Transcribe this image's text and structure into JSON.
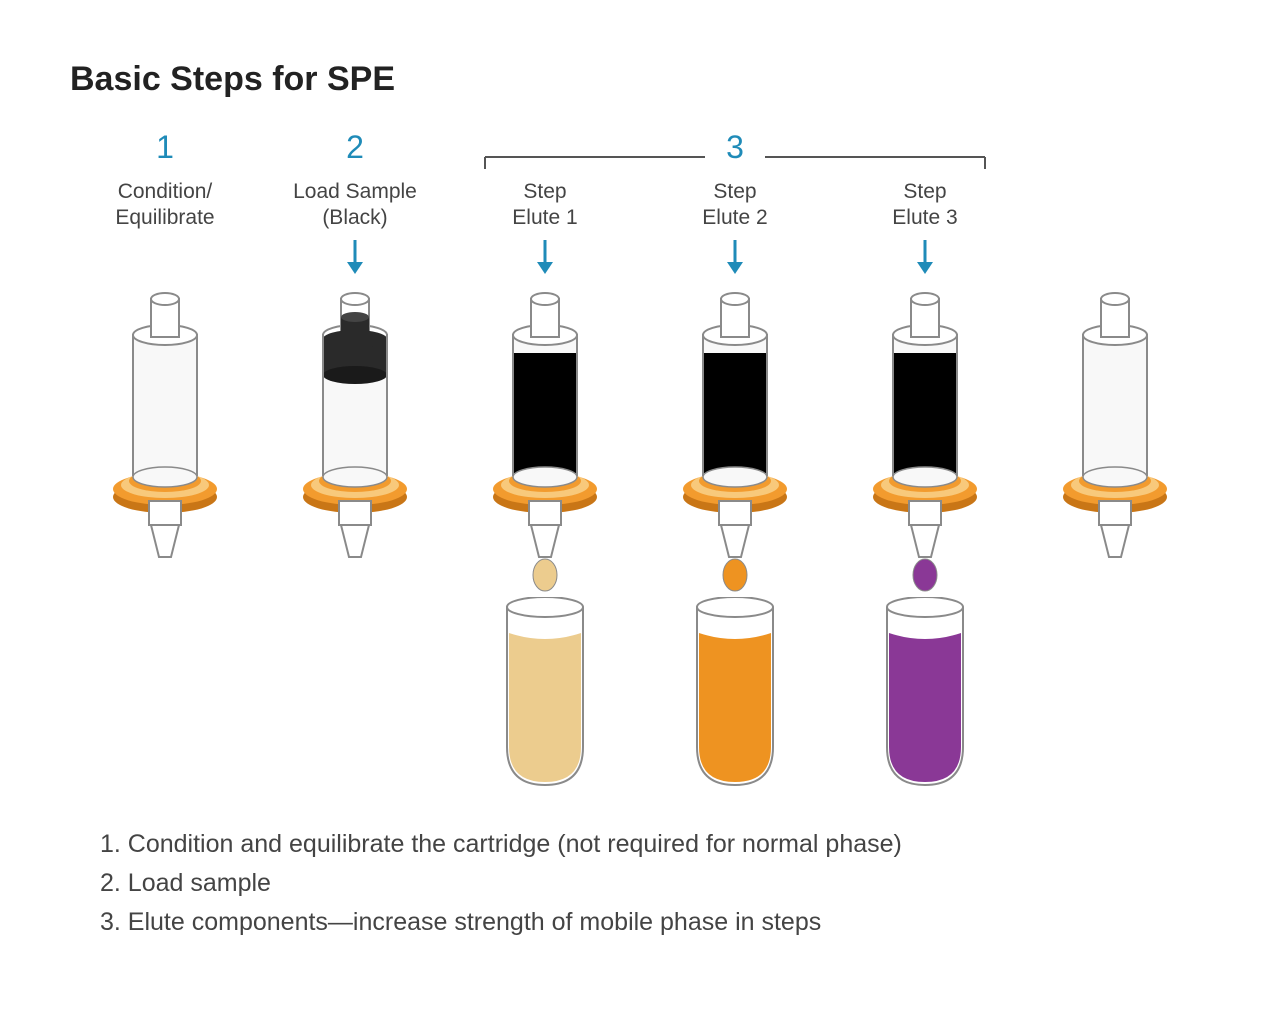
{
  "title": "Basic Steps for SPE",
  "colors": {
    "accent_blue": "#1f8bb8",
    "text": "#444444",
    "stroke": "#8a8a8a",
    "dark_stroke": "#555555",
    "collar": "#f29b2e",
    "collar_light": "#f8c97b",
    "collar_edge": "#c97616",
    "black_cap": "#2a2a2a",
    "purple": "#8a3896",
    "purple_light": "#bb7ec5",
    "orange": "#ee9321",
    "orange_light": "#f3c57e",
    "tan": "#eccc8e",
    "tan_light": "#f5e2bb",
    "white": "#ffffff",
    "body_fill": "#f8f8f8"
  },
  "steps": [
    {
      "num": "1",
      "label_l1": "Condition/",
      "label_l2": "Equilibrate",
      "arrow": false,
      "cap": "none",
      "fill": "none",
      "drop": "none",
      "tube": "none"
    },
    {
      "num": "2",
      "label_l1": "Load Sample",
      "label_l2": "(Black)",
      "arrow": true,
      "cap": "black",
      "fill": "none",
      "drop": "none",
      "tube": "none"
    },
    {
      "num": "",
      "label_l1": "Step",
      "label_l2": "Elute 1",
      "arrow": true,
      "cap": "none",
      "fill": "elute1",
      "drop": "tan",
      "tube": "tan"
    },
    {
      "num": "",
      "label_l1": "Step",
      "label_l2": "Elute 2",
      "arrow": true,
      "cap": "none",
      "fill": "elute2",
      "drop": "orange",
      "tube": "orange"
    },
    {
      "num": "",
      "label_l1": "Step",
      "label_l2": "Elute 3",
      "arrow": true,
      "cap": "none",
      "fill": "elute3",
      "drop": "purple",
      "tube": "purple"
    },
    {
      "num": "",
      "label_l1": "",
      "label_l2": "",
      "arrow": false,
      "cap": "none",
      "fill": "none",
      "drop": "none",
      "tube": "none"
    }
  ],
  "bracket_label": "3",
  "legend": [
    "1. Condition and equilibrate the cartridge (not required for normal phase)",
    "2. Load sample",
    "3. Elute components—increase strength of mobile phase in steps"
  ]
}
